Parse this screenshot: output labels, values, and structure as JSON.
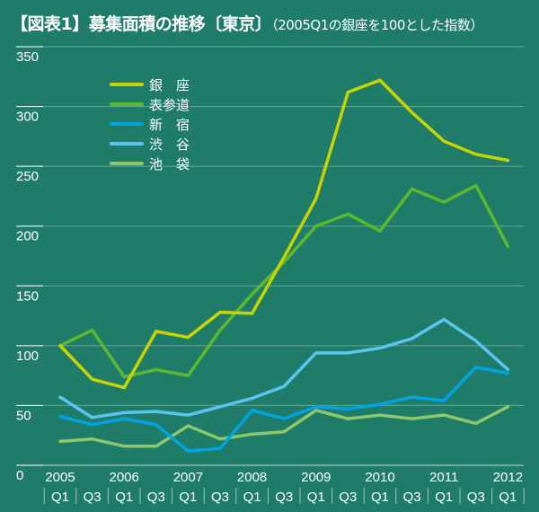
{
  "title": {
    "main": "【図表1】募集面積の推移",
    "region": "〔東京〕",
    "note": "（2005Q1の銀座を100とした指数）"
  },
  "chart_data": {
    "type": "line",
    "title": "【図表1】募集面積の推移〔東京〕（2005Q1の銀座を100とした指数）",
    "ylim": [
      0,
      350
    ],
    "yticks": [
      "0",
      "50",
      "100",
      "150",
      "200",
      "250",
      "300",
      "350"
    ],
    "year_labels": [
      "2005",
      "2006",
      "2007",
      "2008",
      "2009",
      "2010",
      "2011",
      "2012"
    ],
    "x": [
      "Q1",
      "Q3",
      "Q1",
      "Q3",
      "Q1",
      "Q3",
      "Q1",
      "Q3",
      "Q1",
      "Q3",
      "Q1",
      "Q3",
      "Q1",
      "Q3",
      "Q1"
    ],
    "grid": true,
    "legend_position": "top-left",
    "series": [
      {
        "name": "銀　座",
        "color": "#c8d400",
        "values": [
          100,
          72,
          65,
          112,
          107,
          128,
          127,
          174,
          223,
          312,
          322,
          295,
          271,
          260,
          255
        ]
      },
      {
        "name": "表参道",
        "color": "#5cb82e",
        "values": [
          100,
          113,
          74,
          80,
          75,
          113,
          143,
          170,
          200,
          210,
          196,
          231,
          220,
          234,
          183
        ]
      },
      {
        "name": "新　宿",
        "color": "#00a3e2",
        "values": [
          41,
          34,
          39,
          34,
          12,
          14,
          46,
          39,
          49,
          47,
          51,
          57,
          54,
          82,
          77
        ]
      },
      {
        "name": "渋　谷",
        "color": "#5bc5ef",
        "values": [
          57,
          40,
          44,
          45,
          42,
          49,
          56,
          66,
          94,
          94,
          98,
          106,
          122,
          104,
          80
        ]
      },
      {
        "name": "池　袋",
        "color": "#8dc86b",
        "values": [
          20,
          22,
          16,
          16,
          33,
          22,
          26,
          28,
          46,
          39,
          42,
          39,
          42,
          35,
          49
        ]
      }
    ]
  }
}
